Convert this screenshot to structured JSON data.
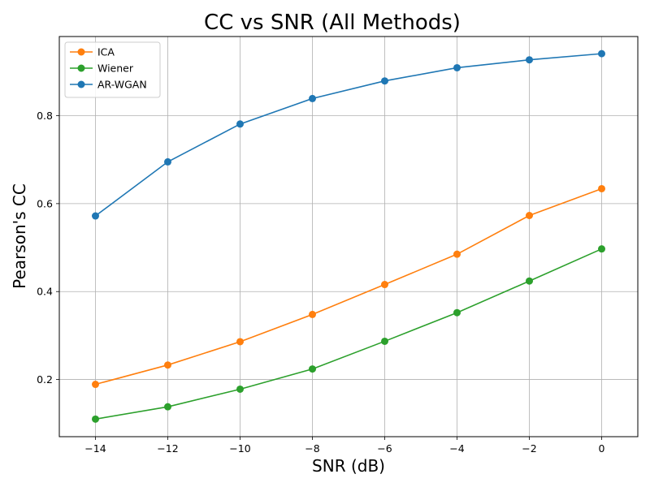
{
  "chart_data": {
    "type": "line",
    "title": "CC vs SNR (All Methods)",
    "xlabel": "SNR (dB)",
    "ylabel": "Pearson's CC",
    "x": [
      -14,
      -12,
      -10,
      -8,
      -6,
      -4,
      -2,
      0
    ],
    "xlim": [
      -15,
      1
    ],
    "ylim": [
      0.07,
      0.98
    ],
    "xticks": [
      -14,
      -12,
      -10,
      -8,
      -6,
      -4,
      -2,
      0
    ],
    "xtick_labels": [
      "−14",
      "−12",
      "−10",
      "−8",
      "−6",
      "−4",
      "−2",
      "0"
    ],
    "yticks": [
      0.2,
      0.4,
      0.6,
      0.8
    ],
    "ytick_labels": [
      "0.2",
      "0.4",
      "0.6",
      "0.8"
    ],
    "grid": true,
    "legend_position": "top-left",
    "series": [
      {
        "name": "ICA",
        "color": "#ff7f0e",
        "values": [
          0.189,
          0.233,
          0.286,
          0.348,
          0.416,
          0.485,
          0.573,
          0.634
        ]
      },
      {
        "name": "Wiener",
        "color": "#2ca02c",
        "values": [
          0.11,
          0.138,
          0.178,
          0.224,
          0.287,
          0.352,
          0.424,
          0.497
        ]
      },
      {
        "name": "AR-WGAN",
        "color": "#1f77b4",
        "values": [
          0.572,
          0.695,
          0.781,
          0.839,
          0.879,
          0.909,
          0.927,
          0.941
        ]
      }
    ]
  }
}
